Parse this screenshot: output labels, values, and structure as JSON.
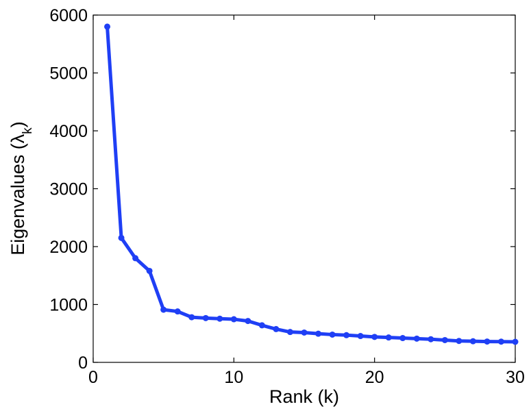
{
  "chart_data": {
    "type": "line",
    "xlabel": "Rank (k)",
    "ylabel_main": "Eigenvalues (",
    "ylabel_symbol": "λ",
    "ylabel_sub": "k",
    "ylabel_close": ")",
    "xlim": [
      0,
      30
    ],
    "ylim": [
      0,
      6000
    ],
    "xticks": [
      0,
      10,
      20,
      30
    ],
    "yticks": [
      0,
      1000,
      2000,
      3000,
      4000,
      5000,
      6000
    ],
    "grid": false,
    "line_color": "#1f3ff5",
    "series": [
      {
        "x": [
          1,
          2,
          3,
          4,
          5,
          6,
          7,
          8,
          9,
          10,
          11,
          12,
          13,
          14,
          15,
          16,
          17,
          18,
          19,
          20,
          21,
          22,
          23,
          24,
          25,
          26,
          27,
          28,
          29,
          30
        ],
        "values": [
          5800,
          2150,
          1800,
          1580,
          910,
          880,
          780,
          765,
          755,
          745,
          715,
          640,
          575,
          525,
          515,
          495,
          480,
          470,
          455,
          440,
          430,
          420,
          410,
          400,
          385,
          370,
          365,
          360,
          358,
          355
        ]
      }
    ]
  }
}
